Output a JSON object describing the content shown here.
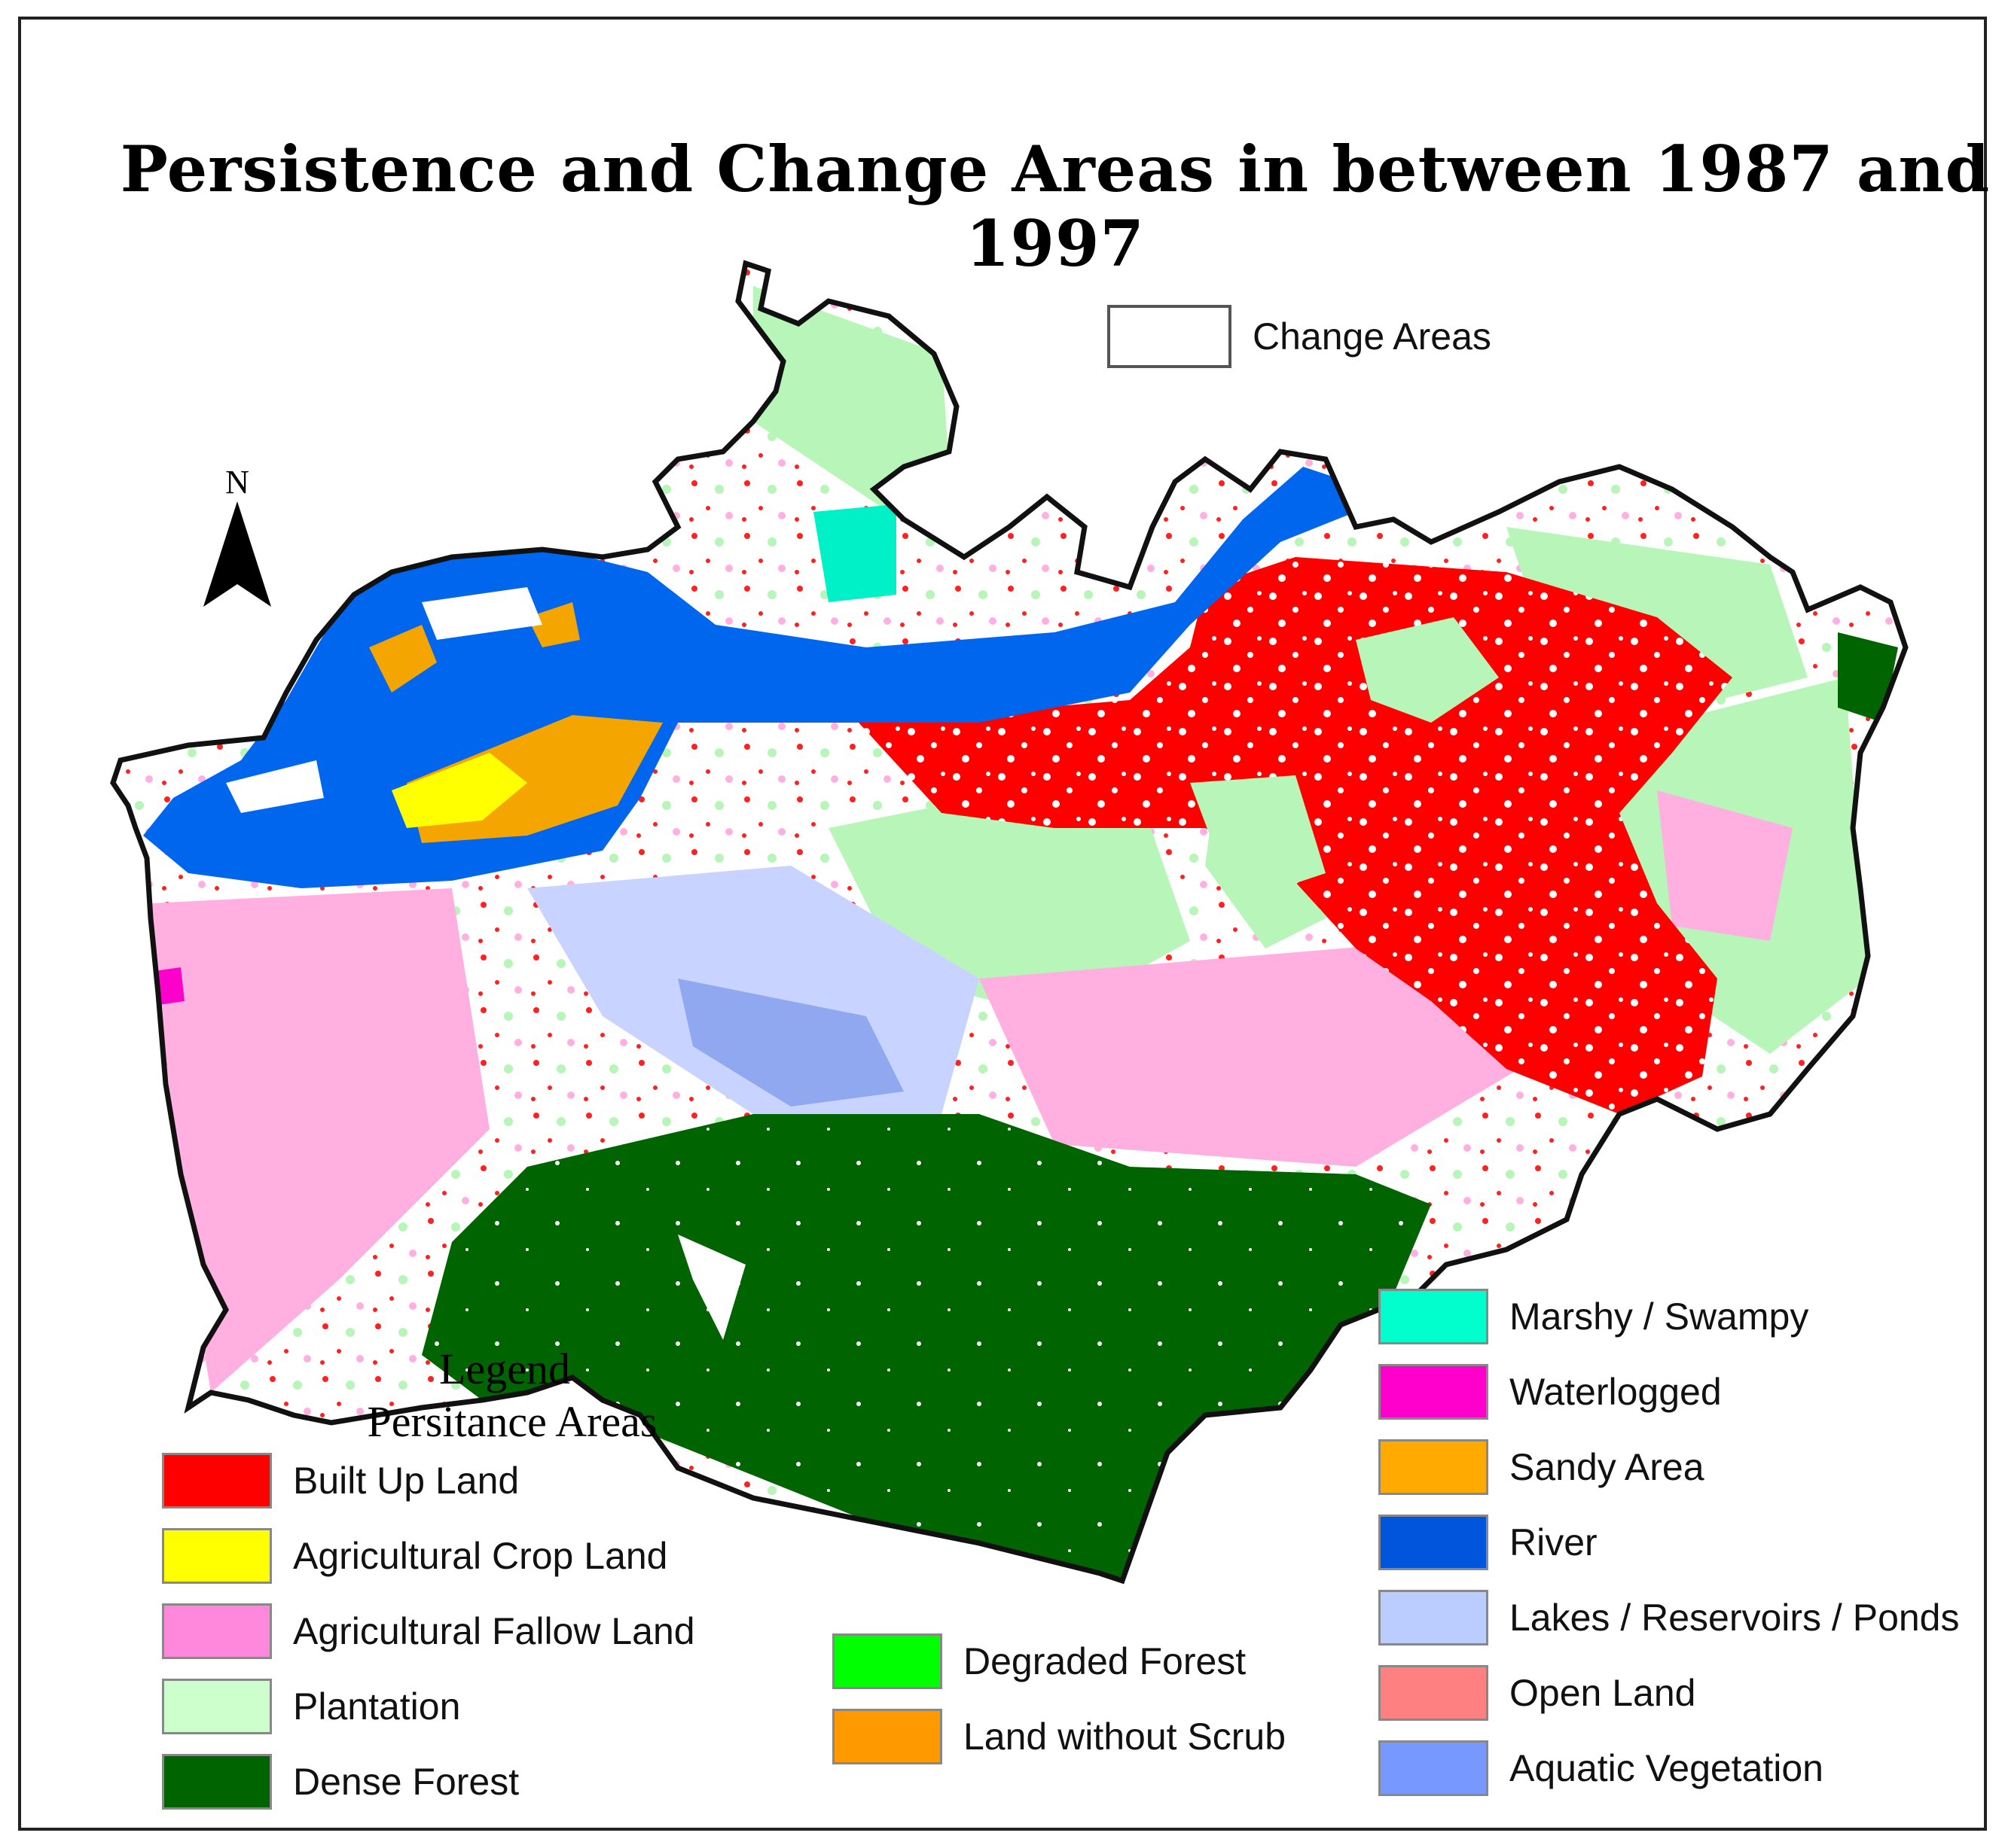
{
  "title": "Persistence and Change Areas in between 1987 and 1997",
  "north_label": "N",
  "change_areas": {
    "label": "Change Areas",
    "color": "#ffffff"
  },
  "legend": {
    "heading": "Legend",
    "subheading": "Persitance Areas",
    "left_items": [
      {
        "label": "Built Up Land",
        "color": "#ff0000"
      },
      {
        "label": "Agricultural  Crop Land",
        "color": "#ffff00"
      },
      {
        "label": "Agricultural  Fallow Land",
        "color": "#ff88dd"
      },
      {
        "label": "Plantation",
        "color": "#ccffcc"
      },
      {
        "label": "Dense Forest",
        "color": "#006400"
      }
    ],
    "middle_items": [
      {
        "label": "Degraded Forest",
        "color": "#00ff00"
      },
      {
        "label": "Land without Scrub",
        "color": "#ff9900"
      }
    ],
    "right_items": [
      {
        "label": "Marshy / Swampy",
        "color": "#00ffcc"
      },
      {
        "label": "Waterlogged",
        "color": "#ff00cc"
      },
      {
        "label": "Sandy Area",
        "color": "#ffaa00"
      },
      {
        "label": "River",
        "color": "#0055dd"
      },
      {
        "label": "Lakes / Reservoirs / Ponds",
        "color": "#bbccff"
      },
      {
        "label": "Open Land",
        "color": "#ff8080"
      },
      {
        "label": "Aquatic Vegetation",
        "color": "#7799ff"
      }
    ]
  }
}
